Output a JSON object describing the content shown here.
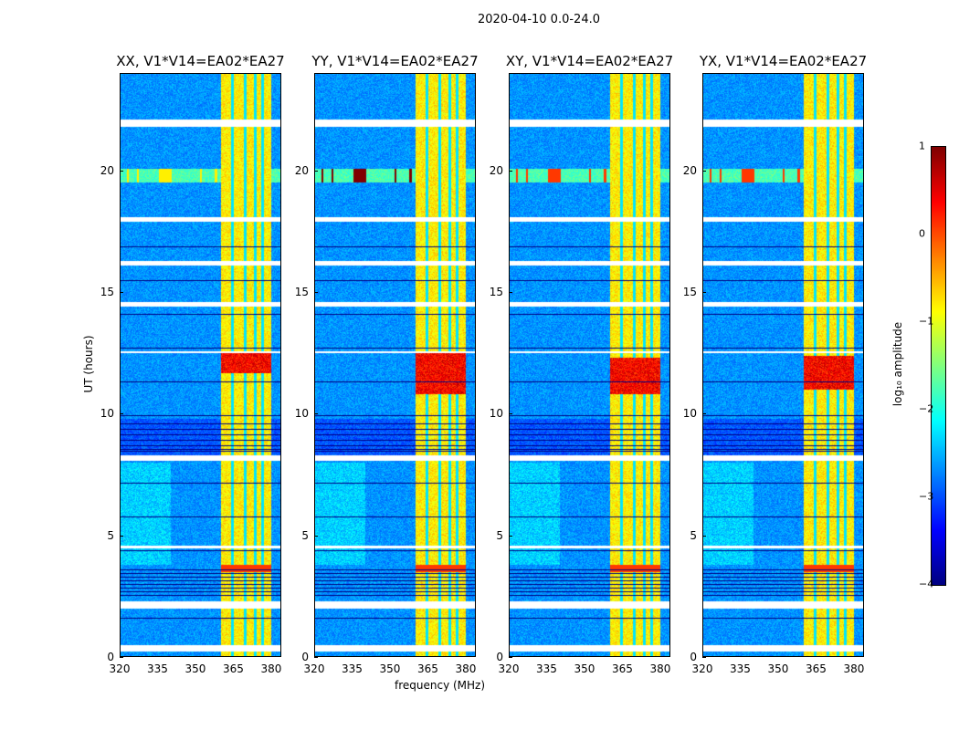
{
  "chart_data": {
    "type": "heatmap",
    "title": "2020-04-10 0.0-24.0",
    "xlabel": "frequency (MHz)",
    "ylabel": "UT (hours)",
    "xlim": [
      320,
      384
    ],
    "ylim": [
      0,
      24
    ],
    "xticks": [
      "320",
      "335",
      "350",
      "365",
      "380"
    ],
    "xtick_values": [
      320,
      335,
      350,
      365,
      380
    ],
    "yticks": [
      "0",
      "5",
      "10",
      "15",
      "20"
    ],
    "ytick_values": [
      0,
      5,
      10,
      15,
      20
    ],
    "panels": [
      {
        "title": "XX, V1*V14=EA02*EA27",
        "rfi_strength": 0.6,
        "strong_block": [
          11.7,
          12.5
        ]
      },
      {
        "title": "YY, V1*V14=EA02*EA27",
        "rfi_strength": 1.0,
        "strong_block": [
          10.8,
          12.6
        ]
      },
      {
        "title": "XY, V1*V14=EA02*EA27",
        "rfi_strength": 0.8,
        "strong_block": [
          10.8,
          12.3
        ]
      },
      {
        "title": "YX, V1*V14=EA02*EA27",
        "rfi_strength": 0.8,
        "strong_block": [
          11.0,
          12.4
        ]
      }
    ],
    "bright_band_mhz": [
      360,
      380
    ],
    "band_gaps_mhz": [
      364.5,
      369.5,
      373.5,
      376.5
    ],
    "flagged_hours": [
      [
        21.8,
        22.1
      ],
      [
        16.1,
        16.3
      ],
      [
        14.4,
        14.6
      ],
      [
        8.1,
        8.3
      ],
      [
        2.0,
        2.3
      ],
      [
        0.26,
        0.5
      ],
      [
        17.9,
        18.1
      ],
      [
        12.5,
        12.6
      ],
      [
        4.5,
        4.6
      ]
    ],
    "rfi_hour": 19.8,
    "rfi_peaks_mhz": [
      338,
      323,
      327,
      352,
      358,
      371,
      378
    ],
    "colorbar": {
      "label": "log₁₀ amplitude",
      "range": [
        -4,
        1
      ],
      "ticks": [
        "1",
        "0",
        "−1",
        "−2",
        "−3",
        "−4"
      ],
      "tick_values": [
        1,
        0,
        -1,
        -2,
        -3,
        -4
      ],
      "colormap": "jet"
    }
  }
}
